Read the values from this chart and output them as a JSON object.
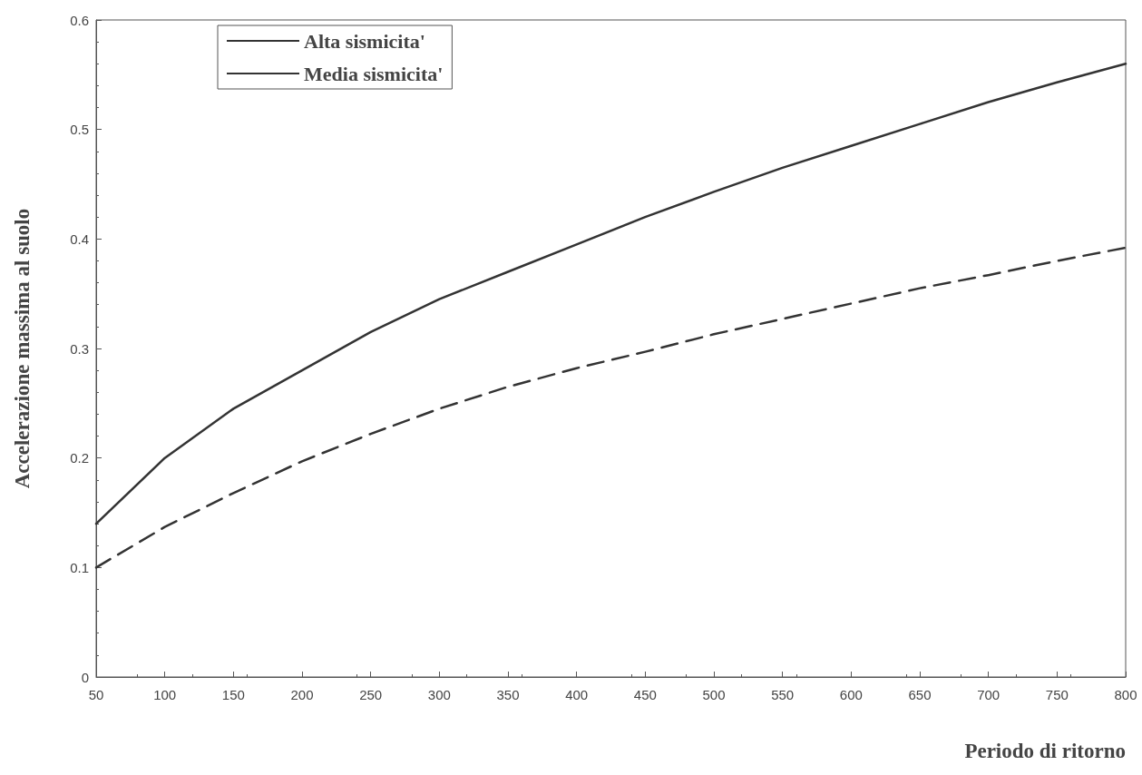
{
  "chart_data": {
    "type": "line",
    "xlabel": "Periodo di ritorno",
    "ylabel": "Accelerazione massima al suolo",
    "x": [
      50,
      100,
      150,
      200,
      250,
      300,
      350,
      400,
      450,
      500,
      550,
      600,
      650,
      700,
      750,
      800
    ],
    "series": [
      {
        "name": "Alta sismicita'",
        "color": "#333333",
        "line_style": "solid",
        "values": [
          0.14,
          0.2,
          0.245,
          0.28,
          0.315,
          0.345,
          0.37,
          0.395,
          0.42,
          0.443,
          0.465,
          0.485,
          0.505,
          0.525,
          0.543,
          0.56
        ]
      },
      {
        "name": "Media sismicita'",
        "color": "#333333",
        "line_style": "dashed",
        "values": [
          0.1,
          0.137,
          0.168,
          0.197,
          0.222,
          0.245,
          0.265,
          0.282,
          0.297,
          0.313,
          0.327,
          0.341,
          0.355,
          0.367,
          0.38,
          0.392
        ]
      }
    ],
    "xlim": [
      50,
      800
    ],
    "xticks": [
      50,
      100,
      150,
      200,
      250,
      300,
      350,
      400,
      450,
      500,
      550,
      600,
      650,
      700,
      750,
      800
    ],
    "ylim": [
      0,
      0.6
    ],
    "yticks": [
      0,
      0.1,
      0.2,
      0.3,
      0.4,
      0.5,
      0.6
    ],
    "grid": false,
    "legend": "top left",
    "marker": "none"
  }
}
